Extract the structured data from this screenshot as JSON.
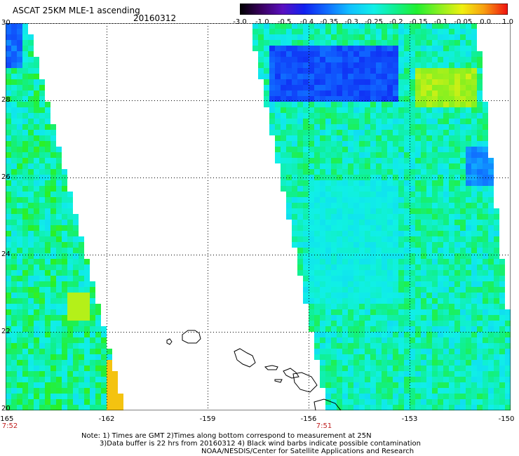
{
  "header": {
    "title": "ASCAT 25KM MLE-1 ascending",
    "date": "20160312"
  },
  "colorbar": {
    "labels": [
      "-3.0",
      "-1.0",
      "-0.5",
      "-0.4",
      "-0.35",
      "-0.3",
      "-0.25",
      "-0.2",
      "-0.15",
      "-0.1",
      "-0.05",
      "0.0",
      "1.0"
    ],
    "colors": [
      "#1a0020",
      "#3a0060",
      "#5a00b0",
      "#1a1ae0",
      "#1060ff",
      "#10a0ff",
      "#10e8f0",
      "#10f0a0",
      "#20f020",
      "#80f020",
      "#e8f010",
      "#f8a010",
      "#f02010"
    ]
  },
  "map": {
    "lat_labels": [
      "30",
      "28",
      "26",
      "24",
      "22",
      "20"
    ],
    "lon_labels": [
      "-165",
      "-162",
      "-159",
      "-156",
      "-153",
      "-150"
    ],
    "pass_times": [
      "7:52",
      "7:51"
    ]
  },
  "notes": {
    "line1": "Note: 1) Times are GMT 2)Times along bottom correspond to measurement at 25N",
    "line2": "3)Data buffer is 22 hrs from 20160312 4) Black wind barbs indicate possible contamination",
    "line3": "NOAA/NESDIS/Center for Satellite Applications and Research"
  }
}
